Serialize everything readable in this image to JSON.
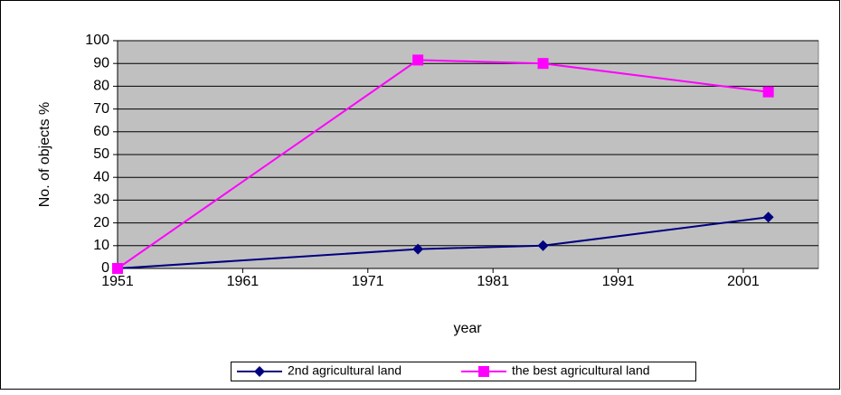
{
  "chart_data": {
    "type": "line",
    "x_label": "year",
    "y_label": "No. of objects %",
    "x": [
      1951,
      1975,
      1985,
      2003
    ],
    "series": [
      {
        "name": "2nd agricultural land",
        "color": "#000080",
        "marker": "diamond",
        "values": [
          0,
          8.5,
          10,
          22.5
        ]
      },
      {
        "name": "the best agricultural land",
        "color": "#ff00ff",
        "marker": "square",
        "values": [
          0,
          91.5,
          90,
          77.5
        ]
      }
    ],
    "xlim": [
      1951,
      2007
    ],
    "xticks": [
      1951,
      1961,
      1971,
      1981,
      1991,
      2001
    ],
    "ylim": [
      0,
      100
    ],
    "yticks": [
      0,
      10,
      20,
      30,
      40,
      50,
      60,
      70,
      80,
      90,
      100
    ],
    "grid": true,
    "legend": "bottom"
  }
}
